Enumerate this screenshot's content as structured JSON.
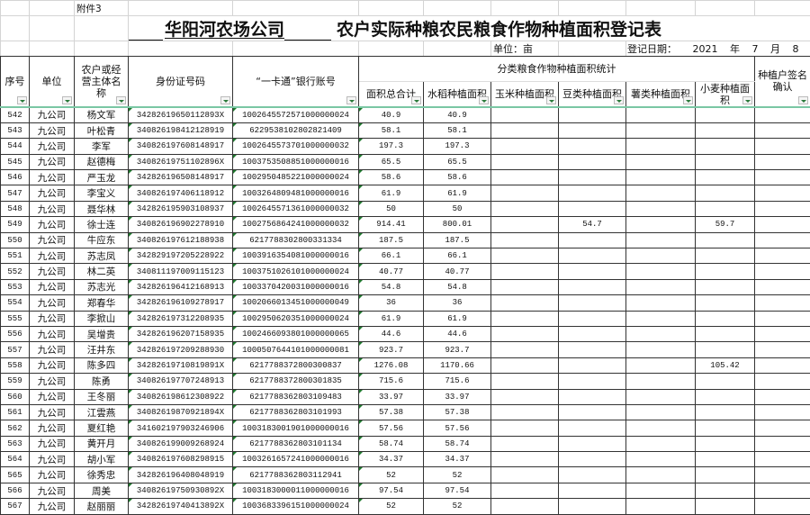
{
  "sheet": {
    "attachment": "附件3",
    "title_company": "华阳河农场公司",
    "title_rest": "农户实际种粮农民粮食作物种植面积登记表",
    "unit_label": "单位：亩",
    "date_label": "登记日期：",
    "date_year": "2021",
    "year_char": "年",
    "date_month": "7",
    "month_char": "月",
    "date_day": "8",
    "day_char": "日"
  },
  "headers": {
    "seq": "序号",
    "unit": "单位",
    "name": "农户或经营主体名称",
    "id": "身份证号码",
    "bank": "“一卡通”银行账号",
    "group": "分类粮食作物种植面积统计",
    "total": "面积总合计",
    "rice": "水稻种植面积",
    "corn": "玉米种植面积",
    "beans": "豆类种植面积",
    "tubers": "薯类种植面积",
    "wheat": "小麦种植面积",
    "sign": "种植户签名确认"
  },
  "rows": [
    [
      "542",
      "九公司",
      "杨文军",
      "34282619650112893X",
      "1002645572571000000024",
      "40.9",
      "40.9",
      "",
      "",
      "",
      "",
      ""
    ],
    [
      "543",
      "九公司",
      "叶松青",
      "340826198412128919",
      "6229538102802821409",
      "58.1",
      "58.1",
      "",
      "",
      "",
      "",
      ""
    ],
    [
      "544",
      "九公司",
      "李军",
      "340826197608148917",
      "1002645573701000000032",
      "197.3",
      "197.3",
      "",
      "",
      "",
      "",
      ""
    ],
    [
      "545",
      "九公司",
      "赵德梅",
      "34082619751102896X",
      "1003753508851000000016",
      "65.5",
      "65.5",
      "",
      "",
      "",
      "",
      ""
    ],
    [
      "546",
      "九公司",
      "严玉龙",
      "342826196508148917",
      "1002950485221000000024",
      "58.6",
      "58.6",
      "",
      "",
      "",
      "",
      ""
    ],
    [
      "547",
      "九公司",
      "李宝义",
      "340826197406118912",
      "1003264809481000000016",
      "61.9",
      "61.9",
      "",
      "",
      "",
      "",
      ""
    ],
    [
      "548",
      "九公司",
      "聂华林",
      "342826195903108937",
      "1002645571361000000032",
      "50",
      "50",
      "",
      "",
      "",
      "",
      ""
    ],
    [
      "549",
      "九公司",
      "徐士连",
      "340826196902278910",
      "1002756864241000000032",
      "914.41",
      "800.01",
      "",
      "54.7",
      "",
      "59.7",
      ""
    ],
    [
      "550",
      "九公司",
      "牛应东",
      "340826197612188938",
      "6217788302800331334",
      "187.5",
      "187.5",
      "",
      "",
      "",
      "",
      ""
    ],
    [
      "551",
      "九公司",
      "苏志凤",
      "342829197205228922",
      "1003916354081000000016",
      "66.1",
      "66.1",
      "",
      "",
      "",
      "",
      ""
    ],
    [
      "552",
      "九公司",
      "林二英",
      "340811197009115123",
      "1003751026101000000024",
      "40.77",
      "40.77",
      "",
      "",
      "",
      "",
      ""
    ],
    [
      "553",
      "九公司",
      "苏志光",
      "342826196412168913",
      "1003370420031000000016",
      "54.8",
      "54.8",
      "",
      "",
      "",
      "",
      ""
    ],
    [
      "554",
      "九公司",
      "郑春华",
      "342826196109278917",
      "1002066013451000000049",
      "36",
      "36",
      "",
      "",
      "",
      "",
      ""
    ],
    [
      "555",
      "九公司",
      "李掀山",
      "342826197312208935",
      "1002950620351000000024",
      "61.9",
      "61.9",
      "",
      "",
      "",
      "",
      ""
    ],
    [
      "556",
      "九公司",
      "吴增贵",
      "342826196207158935",
      "1002466093801000000065",
      "44.6",
      "44.6",
      "",
      "",
      "",
      "",
      ""
    ],
    [
      "557",
      "九公司",
      "汪井东",
      "342826197209288930",
      "1000507644101000000081",
      "923.7",
      "923.7",
      "",
      "",
      "",
      "",
      ""
    ],
    [
      "558",
      "九公司",
      "陈多四",
      "34282619710819891X",
      "6217788372800300837",
      "1276.08",
      "1170.66",
      "",
      "",
      "",
      "105.42",
      ""
    ],
    [
      "559",
      "九公司",
      "陈勇",
      "340826197707248913",
      "6217788372800301835",
      "715.6",
      "715.6",
      "",
      "",
      "",
      "",
      ""
    ],
    [
      "560",
      "九公司",
      "王冬丽",
      "340826198612308922",
      "6217788362803109483",
      "33.97",
      "33.97",
      "",
      "",
      "",
      "",
      ""
    ],
    [
      "561",
      "九公司",
      "江雲燕",
      "34082619870921894X",
      "6217788362803101993",
      "57.38",
      "57.38",
      "",
      "",
      "",
      "",
      ""
    ],
    [
      "562",
      "九公司",
      "夏红艳",
      "341602197903246906",
      "1003183001901000000016",
      "57.56",
      "57.56",
      "",
      "",
      "",
      "",
      ""
    ],
    [
      "563",
      "九公司",
      "黄开月",
      "340826199009268924",
      "6217788362803101134",
      "58.74",
      "58.74",
      "",
      "",
      "",
      "",
      ""
    ],
    [
      "564",
      "九公司",
      "胡小军",
      "340826197608298915",
      "1003261657241000000016",
      "34.37",
      "34.37",
      "",
      "",
      "",
      "",
      ""
    ],
    [
      "565",
      "九公司",
      "徐秀忠",
      "342826196408048919",
      "6217788362803112941",
      "52",
      "52",
      "",
      "",
      "",
      "",
      ""
    ],
    [
      "566",
      "九公司",
      "周美",
      "34082619750930892X",
      "1003183000011000000016",
      "97.54",
      "97.54",
      "",
      "",
      "",
      "",
      ""
    ],
    [
      "567",
      "九公司",
      "赵丽丽",
      "34282619740413892X",
      "1003683396151000000024",
      "52",
      "52",
      "",
      "",
      "",
      "",
      ""
    ]
  ]
}
